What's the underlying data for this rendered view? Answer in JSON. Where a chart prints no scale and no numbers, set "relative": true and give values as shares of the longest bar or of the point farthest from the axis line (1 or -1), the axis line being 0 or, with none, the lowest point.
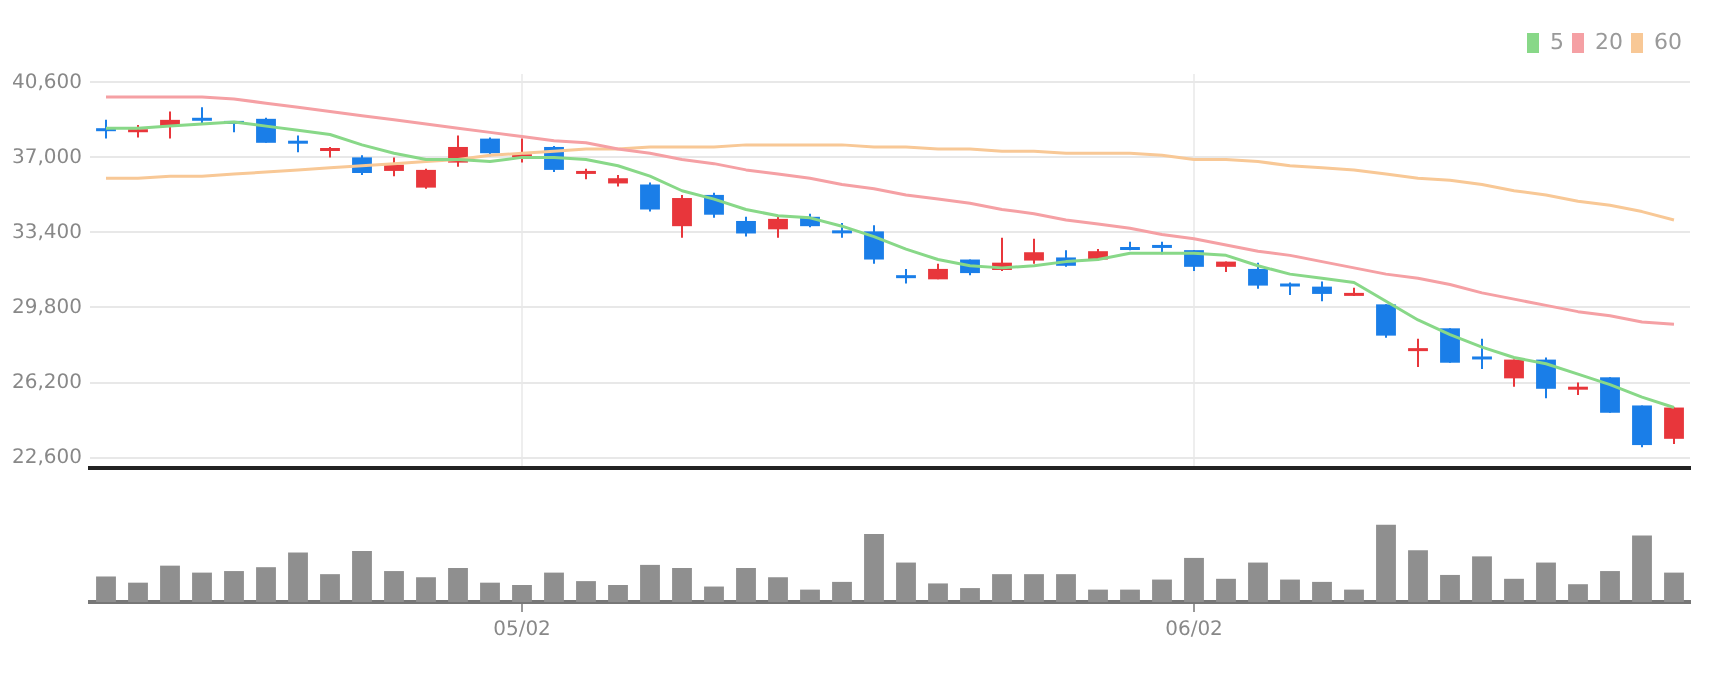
{
  "chart_data": [
    {
      "type": "candlestick",
      "categories": [
        null,
        null,
        null,
        null,
        null,
        null,
        null,
        null,
        null,
        null,
        null,
        null,
        null,
        null,
        null,
        null,
        null,
        null,
        null,
        null,
        null,
        null,
        null,
        null,
        null,
        null,
        null,
        null,
        null,
        null,
        null,
        null,
        null,
        null,
        null,
        null,
        null,
        null,
        null,
        null,
        null,
        null,
        null,
        null,
        null,
        null,
        null,
        null,
        null,
        null
      ],
      "ohlc": [
        [
          38400,
          38800,
          37900,
          38350
        ],
        [
          38300,
          38550,
          37950,
          38350
        ],
        [
          38500,
          39200,
          37900,
          38800
        ],
        [
          38900,
          39400,
          38550,
          38850
        ],
        [
          38750,
          38750,
          38200,
          38700
        ],
        [
          38850,
          38900,
          37700,
          37700
        ],
        [
          37800,
          38050,
          37250,
          37750
        ],
        [
          37400,
          37500,
          37000,
          37450
        ],
        [
          37000,
          37100,
          36150,
          36250
        ],
        [
          36350,
          37000,
          36100,
          36650
        ],
        [
          35550,
          36450,
          35500,
          36400
        ],
        [
          36750,
          38050,
          36550,
          37500
        ],
        [
          37900,
          37950,
          37050,
          37200
        ],
        [
          37100,
          37900,
          36750,
          37150
        ],
        [
          37500,
          37550,
          36300,
          36400
        ],
        [
          36300,
          36450,
          35950,
          36350
        ],
        [
          35750,
          36150,
          35600,
          36000
        ],
        [
          35700,
          35800,
          34400,
          34500
        ],
        [
          33700,
          35200,
          33150,
          35050
        ],
        [
          35200,
          35300,
          34100,
          34250
        ],
        [
          33950,
          34150,
          33200,
          33350
        ],
        [
          33550,
          34150,
          33150,
          34050
        ],
        [
          34150,
          34300,
          33650,
          33700
        ],
        [
          33500,
          33850,
          33150,
          33450
        ],
        [
          33450,
          33750,
          31900,
          32100
        ],
        [
          31350,
          31650,
          30950,
          31300
        ],
        [
          31150,
          31900,
          31150,
          31650
        ],
        [
          32100,
          32100,
          31350,
          31450
        ],
        [
          31600,
          33150,
          31550,
          31950
        ],
        [
          32050,
          33100,
          31900,
          32450
        ],
        [
          32200,
          32550,
          31750,
          31800
        ],
        [
          32100,
          32600,
          32050,
          32500
        ],
        [
          32700,
          32950,
          32550,
          32650
        ],
        [
          32800,
          32950,
          32350,
          32750
        ],
        [
          32550,
          32550,
          31550,
          31750
        ],
        [
          31750,
          32000,
          31500,
          32000
        ],
        [
          31650,
          31950,
          30700,
          30850
        ],
        [
          30950,
          31000,
          30400,
          30900
        ],
        [
          30800,
          31050,
          30100,
          30450
        ],
        [
          30450,
          30750,
          30350,
          30500
        ],
        [
          29950,
          29950,
          28350,
          28450
        ],
        [
          27800,
          28300,
          26950,
          27850
        ],
        [
          28800,
          28800,
          27150,
          27150
        ],
        [
          27450,
          28300,
          26850,
          27400
        ],
        [
          26400,
          27300,
          26000,
          27300
        ],
        [
          27300,
          27400,
          25450,
          25900
        ],
        [
          25950,
          26200,
          25600,
          26000
        ],
        [
          26450,
          26450,
          24750,
          24750
        ],
        [
          25100,
          25100,
          23100,
          23200
        ],
        [
          23500,
          25000,
          23250,
          25000
        ]
      ],
      "colors": [
        "#1a7ee8",
        "#e8363b",
        "#e8363b",
        "#1a7ee8",
        "#1a7ee8",
        "#1a7ee8",
        "#1a7ee8",
        "#e8363b",
        "#1a7ee8",
        "#e8363b",
        "#e8363b",
        "#e8363b",
        "#1a7ee8",
        "#e8363b",
        "#1a7ee8",
        "#e8363b",
        "#e8363b",
        "#1a7ee8",
        "#e8363b",
        "#1a7ee8",
        "#1a7ee8",
        "#e8363b",
        "#1a7ee8",
        "#1a7ee8",
        "#1a7ee8",
        "#1a7ee8",
        "#e8363b",
        "#1a7ee8",
        "#e8363b",
        "#e8363b",
        "#1a7ee8",
        "#e8363b",
        "#1a7ee8",
        "#1a7ee8",
        "#1a7ee8",
        "#e8363b",
        "#1a7ee8",
        "#1a7ee8",
        "#1a7ee8",
        "#e8363b",
        "#1a7ee8",
        "#e8363b",
        "#1a7ee8",
        "#1a7ee8",
        "#e8363b",
        "#1a7ee8",
        "#e8363b",
        "#1a7ee8",
        "#1a7ee8",
        "#e8363b"
      ],
      "series": [
        {
          "name": "5",
          "type": "line",
          "color": "#88d888",
          "values": [
            38400,
            38400,
            38500,
            38600,
            38700,
            38500,
            38300,
            38100,
            37600,
            37200,
            36900,
            36900,
            36800,
            37000,
            37000,
            36900,
            36600,
            36100,
            35400,
            35000,
            34500,
            34200,
            34100,
            33700,
            33200,
            32600,
            32100,
            31800,
            31700,
            31800,
            32000,
            32100,
            32400,
            32400,
            32400,
            32300,
            31800,
            31400,
            31200,
            31000,
            30100,
            29200,
            28500,
            27900,
            27400,
            27100,
            26600,
            26100,
            25500,
            25000
          ]
        },
        {
          "name": "20",
          "type": "line",
          "color": "#f5a0a4",
          "values": [
            39900,
            39900,
            39900,
            39900,
            39800,
            39600,
            39400,
            39200,
            39000,
            38800,
            38600,
            38400,
            38200,
            38000,
            37800,
            37700,
            37400,
            37200,
            36900,
            36700,
            36400,
            36200,
            36000,
            35700,
            35500,
            35200,
            35000,
            34800,
            34500,
            34300,
            34000,
            33800,
            33600,
            33300,
            33100,
            32800,
            32500,
            32300,
            32000,
            31700,
            31400,
            31200,
            30900,
            30500,
            30200,
            29900,
            29600,
            29400,
            29100,
            29000
          ]
        },
        {
          "name": "60",
          "type": "line",
          "color": "#f8c896",
          "values": [
            36000,
            36000,
            36100,
            36100,
            36200,
            36300,
            36400,
            36500,
            36600,
            36700,
            36800,
            36900,
            37100,
            37200,
            37300,
            37400,
            37400,
            37500,
            37500,
            37500,
            37600,
            37600,
            37600,
            37600,
            37500,
            37500,
            37400,
            37400,
            37300,
            37300,
            37200,
            37200,
            37200,
            37100,
            36900,
            36900,
            36800,
            36600,
            36500,
            36400,
            36200,
            36000,
            35900,
            35700,
            35400,
            35200,
            34900,
            34700,
            34400,
            34000
          ]
        }
      ],
      "ylim": [
        22100,
        41000
      ],
      "yticks": [
        {
          "value": 22600,
          "label": "22,600"
        },
        {
          "value": 26200,
          "label": "26,200"
        },
        {
          "value": 29800,
          "label": "29,800"
        },
        {
          "value": 33400,
          "label": "33,400"
        },
        {
          "value": 37000,
          "label": "37,000"
        },
        {
          "value": 40600,
          "label": "40,600"
        }
      ],
      "grid": true,
      "legend": "top right",
      "tick_labels": "y"
    },
    {
      "type": "bar",
      "categories": [
        null,
        null,
        null,
        null,
        null,
        null,
        null,
        null,
        null,
        null,
        null,
        null,
        null,
        "05/02",
        null,
        null,
        null,
        null,
        null,
        null,
        null,
        null,
        null,
        null,
        null,
        null,
        null,
        null,
        null,
        null,
        null,
        null,
        null,
        null,
        "06/02",
        null,
        null,
        null,
        null,
        null,
        null,
        null,
        null,
        null,
        null,
        null,
        null,
        null,
        null,
        null
      ],
      "values": [
        0.33,
        0.25,
        0.47,
        0.38,
        0.4,
        0.45,
        0.64,
        0.36,
        0.66,
        0.4,
        0.32,
        0.44,
        0.25,
        0.22,
        0.38,
        0.27,
        0.22,
        0.48,
        0.44,
        0.2,
        0.44,
        0.32,
        0.16,
        0.26,
        0.88,
        0.51,
        0.24,
        0.18,
        0.36,
        0.36,
        0.36,
        0.16,
        0.16,
        0.29,
        0.57,
        0.3,
        0.51,
        0.29,
        0.26,
        0.16,
        1,
        0.67,
        0.35,
        0.59,
        0.3,
        0.51,
        0.23,
        0.4,
        0.86,
        0.38
      ],
      "color": "#8f8f8f",
      "relative": true
    }
  ]
}
